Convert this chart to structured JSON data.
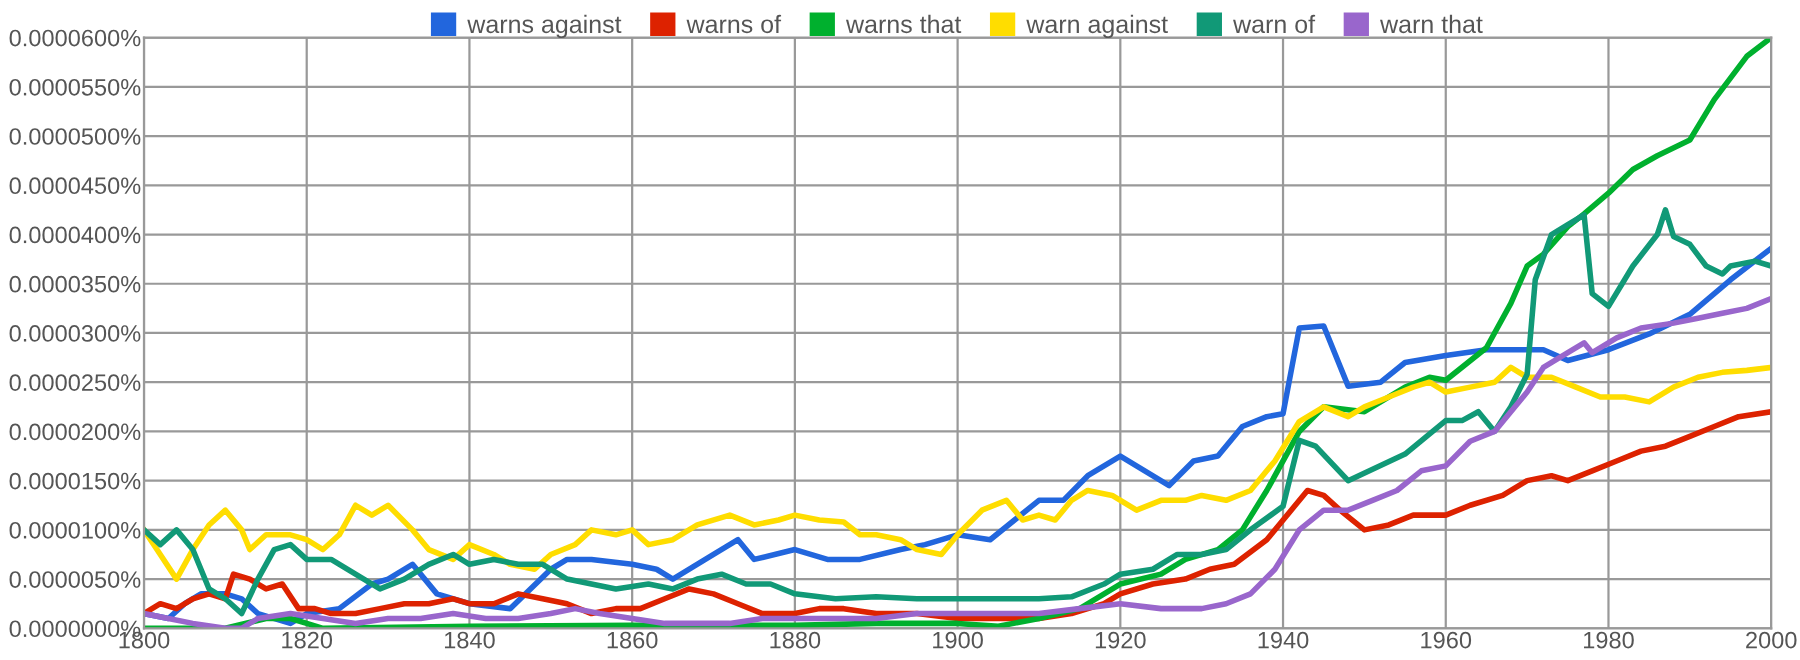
{
  "chart_data": {
    "type": "line",
    "grid": true,
    "legend": "top",
    "marker": "none",
    "line_style": "solid",
    "xlim": [
      1800,
      2000
    ],
    "xticks": [
      1800,
      1820,
      1840,
      1860,
      1880,
      1900,
      1920,
      1940,
      1960,
      1980,
      2000
    ],
    "ylim": [
      0,
      6e-05
    ],
    "yticks": [
      {
        "value": 0,
        "label": "0.0000000%"
      },
      {
        "value": 5e-06,
        "label": "0.0000050%"
      },
      {
        "value": 1e-05,
        "label": "0.0000100%"
      },
      {
        "value": 1.5e-05,
        "label": "0.0000150%"
      },
      {
        "value": 2e-05,
        "label": "0.0000200%"
      },
      {
        "value": 2.5e-05,
        "label": "0.0000250%"
      },
      {
        "value": 3e-05,
        "label": "0.0000300%"
      },
      {
        "value": 3.5e-05,
        "label": "0.0000350%"
      },
      {
        "value": 4e-05,
        "label": "0.0000400%"
      },
      {
        "value": 4.5e-05,
        "label": "0.0000450%"
      },
      {
        "value": 5e-05,
        "label": "0.0000500%"
      },
      {
        "value": 5.5e-05,
        "label": "0.0000550%"
      },
      {
        "value": 6e-05,
        "label": "0.0000600%"
      }
    ],
    "series": [
      {
        "name": "warns against",
        "color": "#2266dd",
        "x": [
          1800,
          1803,
          1805,
          1807,
          1810,
          1812,
          1814,
          1818,
          1820,
          1824,
          1828,
          1830,
          1833,
          1836,
          1840,
          1845,
          1850,
          1852,
          1855,
          1860,
          1863,
          1865,
          1870,
          1873,
          1875,
          1880,
          1884,
          1888,
          1893,
          1896,
          1900,
          1904,
          1907,
          1910,
          1913,
          1916,
          1920,
          1923,
          1926,
          1929,
          1932,
          1935,
          1938,
          1940,
          1942,
          1945,
          1948,
          1952,
          1955,
          1960,
          1965,
          1968,
          1972,
          1975,
          1980,
          1985,
          1990,
          1995,
          2000
        ],
        "values": [
          1.5e-06,
          1e-06,
          2.5e-06,
          3.5e-06,
          3.5e-06,
          3e-06,
          1.5e-06,
          5e-07,
          1.5e-06,
          2e-06,
          4.5e-06,
          5e-06,
          6.5e-06,
          3.5e-06,
          2.5e-06,
          2e-06,
          6e-06,
          7e-06,
          7e-06,
          6.5e-06,
          6e-06,
          5e-06,
          7.5e-06,
          9e-06,
          7e-06,
          8e-06,
          7e-06,
          7e-06,
          8e-06,
          8.5e-06,
          9.5e-06,
          9e-06,
          1.1e-05,
          1.3e-05,
          1.3e-05,
          1.55e-05,
          1.75e-05,
          1.6e-05,
          1.45e-05,
          1.7e-05,
          1.75e-05,
          2.05e-05,
          2.15e-05,
          2.18e-05,
          3.05e-05,
          3.07e-05,
          2.46e-05,
          2.5e-05,
          2.7e-05,
          2.77e-05,
          2.83e-05,
          2.83e-05,
          2.83e-05,
          2.72e-05,
          2.83e-05,
          2.99e-05,
          3.19e-05,
          3.54e-05,
          3.86e-05
        ]
      },
      {
        "name": "warns of",
        "color": "#dd2200",
        "x": [
          1800,
          1802,
          1804,
          1806,
          1808,
          1810,
          1811,
          1813,
          1815,
          1817,
          1819,
          1821,
          1823,
          1826,
          1829,
          1832,
          1835,
          1838,
          1840,
          1843,
          1846,
          1849,
          1852,
          1855,
          1858,
          1861,
          1864,
          1867,
          1870,
          1873,
          1876,
          1880,
          1883,
          1886,
          1890,
          1895,
          1900,
          1905,
          1910,
          1914,
          1918,
          1920,
          1924,
          1928,
          1931,
          1934,
          1938,
          1941,
          1943,
          1945,
          1947,
          1950,
          1953,
          1956,
          1960,
          1963,
          1967,
          1970,
          1973,
          1975,
          1978,
          1981,
          1984,
          1987,
          1990,
          1993,
          1996,
          2000
        ],
        "values": [
          1.5e-06,
          2.5e-06,
          2e-06,
          3e-06,
          3.5e-06,
          3e-06,
          5.5e-06,
          5e-06,
          4e-06,
          4.5e-06,
          2e-06,
          2e-06,
          1.5e-06,
          1.5e-06,
          2e-06,
          2.5e-06,
          2.5e-06,
          3e-06,
          2.5e-06,
          2.5e-06,
          3.5e-06,
          3e-06,
          2.5e-06,
          1.5e-06,
          2e-06,
          2e-06,
          3e-06,
          4e-06,
          3.5e-06,
          2.5e-06,
          1.5e-06,
          1.5e-06,
          2e-06,
          2e-06,
          1.5e-06,
          1.5e-06,
          1e-06,
          1e-06,
          1e-06,
          1.5e-06,
          2.5e-06,
          3.5e-06,
          4.5e-06,
          5e-06,
          6e-06,
          6.5e-06,
          9e-06,
          1.2e-05,
          1.4e-05,
          1.35e-05,
          1.2e-05,
          1e-05,
          1.05e-05,
          1.15e-05,
          1.15e-05,
          1.25e-05,
          1.35e-05,
          1.5e-05,
          1.55e-05,
          1.5e-05,
          1.6e-05,
          1.7e-05,
          1.8e-05,
          1.85e-05,
          1.95e-05,
          2.05e-05,
          2.15e-05,
          2.2e-05
        ]
      },
      {
        "name": "warns that",
        "color": "#00b02e",
        "x": [
          1800,
          1810,
          1815,
          1818,
          1820,
          1822,
          1840,
          1860,
          1880,
          1890,
          1900,
          1905,
          1910,
          1915,
          1920,
          1925,
          1928,
          1932,
          1935,
          1938,
          1942,
          1945,
          1950,
          1955,
          1958,
          1960,
          1965,
          1968,
          1970,
          1972,
          1975,
          1977,
          1980,
          1983,
          1986,
          1990,
          1993,
          1997,
          2000
        ],
        "values": [
          0,
          0,
          1e-06,
          1e-06,
          5e-07,
          0,
          2e-07,
          3e-07,
          3e-07,
          5e-07,
          5e-07,
          2e-07,
          1e-06,
          2e-06,
          4.5e-06,
          5.5e-06,
          7e-06,
          8e-06,
          1e-05,
          1.4e-05,
          2e-05,
          2.25e-05,
          2.2e-05,
          2.45e-05,
          2.55e-05,
          2.52e-05,
          2.85e-05,
          3.3e-05,
          3.68e-05,
          3.8e-05,
          4.08e-05,
          4.21e-05,
          4.42e-05,
          4.66e-05,
          4.8e-05,
          4.96e-05,
          5.37e-05,
          5.81e-05,
          6e-05
        ]
      },
      {
        "name": "warn against",
        "color": "#ffdd00",
        "x": [
          1800,
          1802,
          1804,
          1806,
          1808,
          1810,
          1812,
          1813,
          1815,
          1818,
          1820,
          1822,
          1824,
          1826,
          1828,
          1830,
          1833,
          1835,
          1838,
          1840,
          1843,
          1845,
          1848,
          1850,
          1853,
          1855,
          1858,
          1860,
          1862,
          1865,
          1868,
          1872,
          1875,
          1878,
          1880,
          1883,
          1886,
          1888,
          1890,
          1893,
          1895,
          1898,
          1900,
          1903,
          1906,
          1908,
          1910,
          1912,
          1914,
          1916,
          1919,
          1922,
          1925,
          1928,
          1930,
          1933,
          1936,
          1939,
          1942,
          1945,
          1948,
          1950,
          1953,
          1956,
          1958,
          1960,
          1963,
          1966,
          1968,
          1970,
          1973,
          1976,
          1979,
          1982,
          1985,
          1988,
          1991,
          1994,
          1997,
          2000
        ],
        "values": [
          1e-05,
          7.5e-06,
          5e-06,
          8e-06,
          1.05e-05,
          1.2e-05,
          1e-05,
          8e-06,
          9.5e-06,
          9.5e-06,
          9e-06,
          8e-06,
          9.5e-06,
          1.25e-05,
          1.15e-05,
          1.25e-05,
          1e-05,
          8e-06,
          7e-06,
          8.5e-06,
          7.5e-06,
          6.5e-06,
          6e-06,
          7.5e-06,
          8.5e-06,
          1e-05,
          9.5e-06,
          1e-05,
          8.5e-06,
          9e-06,
          1.05e-05,
          1.15e-05,
          1.05e-05,
          1.1e-05,
          1.15e-05,
          1.1e-05,
          1.08e-05,
          9.5e-06,
          9.5e-06,
          9e-06,
          8e-06,
          7.5e-06,
          9.5e-06,
          1.2e-05,
          1.3e-05,
          1.1e-05,
          1.15e-05,
          1.1e-05,
          1.3e-05,
          1.4e-05,
          1.35e-05,
          1.2e-05,
          1.3e-05,
          1.3e-05,
          1.35e-05,
          1.3e-05,
          1.4e-05,
          1.7e-05,
          2.1e-05,
          2.25e-05,
          2.15e-05,
          2.25e-05,
          2.35e-05,
          2.45e-05,
          2.5e-05,
          2.4e-05,
          2.45e-05,
          2.5e-05,
          2.65e-05,
          2.55e-05,
          2.55e-05,
          2.45e-05,
          2.35e-05,
          2.35e-05,
          2.3e-05,
          2.45e-05,
          2.55e-05,
          2.6e-05,
          2.62e-05,
          2.65e-05
        ]
      },
      {
        "name": "warn of",
        "color": "#119977",
        "x": [
          1800,
          1802,
          1804,
          1806,
          1808,
          1810,
          1812,
          1814,
          1816,
          1818,
          1820,
          1823,
          1826,
          1829,
          1832,
          1835,
          1838,
          1840,
          1843,
          1846,
          1849,
          1852,
          1855,
          1858,
          1862,
          1865,
          1868,
          1871,
          1874,
          1877,
          1880,
          1885,
          1890,
          1895,
          1900,
          1905,
          1910,
          1914,
          1918,
          1920,
          1924,
          1927,
          1930,
          1933,
          1936,
          1940,
          1942,
          1944,
          1948,
          1955,
          1960,
          1962,
          1964,
          1966,
          1968,
          1970,
          1971,
          1973,
          1975,
          1977,
          1978,
          1980,
          1983,
          1986,
          1987,
          1988,
          1990,
          1992,
          1994,
          1995,
          1998,
          2000
        ],
        "values": [
          1e-05,
          8.5e-06,
          1e-05,
          8e-06,
          4e-06,
          3e-06,
          1.5e-06,
          5e-06,
          8e-06,
          8.5e-06,
          7e-06,
          7e-06,
          5.5e-06,
          4e-06,
          5e-06,
          6.5e-06,
          7.5e-06,
          6.5e-06,
          7e-06,
          6.5e-06,
          6.5e-06,
          5e-06,
          4.5e-06,
          4e-06,
          4.5e-06,
          4e-06,
          5e-06,
          5.5e-06,
          4.5e-06,
          4.5e-06,
          3.5e-06,
          3e-06,
          3.2e-06,
          3e-06,
          3e-06,
          3e-06,
          3e-06,
          3.2e-06,
          4.5e-06,
          5.5e-06,
          6e-06,
          7.5e-06,
          7.5e-06,
          8e-06,
          1e-05,
          1.24e-05,
          1.91e-05,
          1.85e-05,
          1.5e-05,
          1.77e-05,
          2.11e-05,
          2.11e-05,
          2.2e-05,
          2e-05,
          2.25e-05,
          2.58e-05,
          3.54e-05,
          4e-05,
          4.1e-05,
          4.2e-05,
          3.4e-05,
          3.27e-05,
          3.68e-05,
          4e-05,
          4.25e-05,
          3.98e-05,
          3.9e-05,
          3.68e-05,
          3.6e-05,
          3.68e-05,
          3.73e-05,
          3.68e-05
        ]
      },
      {
        "name": "warn that",
        "color": "#9966cc",
        "x": [
          1800,
          1803,
          1806,
          1810,
          1812,
          1814,
          1818,
          1822,
          1826,
          1830,
          1834,
          1838,
          1842,
          1846,
          1850,
          1853,
          1856,
          1860,
          1864,
          1868,
          1872,
          1876,
          1880,
          1885,
          1890,
          1895,
          1900,
          1905,
          1910,
          1915,
          1920,
          1925,
          1930,
          1933,
          1936,
          1939,
          1942,
          1945,
          1948,
          1951,
          1954,
          1957,
          1960,
          1963,
          1966,
          1968,
          1970,
          1972,
          1975,
          1977,
          1978,
          1981,
          1984,
          1988,
          1991,
          1994,
          1997,
          2000
        ],
        "values": [
          1.5e-06,
          1e-06,
          5e-07,
          0,
          0,
          1e-06,
          1.5e-06,
          1e-06,
          5e-07,
          1e-06,
          1e-06,
          1.5e-06,
          1e-06,
          1e-06,
          1.5e-06,
          2e-06,
          1.5e-06,
          1e-06,
          5e-07,
          5e-07,
          5e-07,
          1e-06,
          1e-06,
          1e-06,
          1e-06,
          1.5e-06,
          1.5e-06,
          1.5e-06,
          1.5e-06,
          2e-06,
          2.5e-06,
          2e-06,
          2e-06,
          2.5e-06,
          3.5e-06,
          6e-06,
          1e-05,
          1.2e-05,
          1.2e-05,
          1.3e-05,
          1.4e-05,
          1.6e-05,
          1.65e-05,
          1.9e-05,
          2e-05,
          2.2e-05,
          2.4e-05,
          2.65e-05,
          2.8e-05,
          2.9e-05,
          2.8e-05,
          2.95e-05,
          3.05e-05,
          3.1e-05,
          3.15e-05,
          3.2e-05,
          3.25e-05,
          3.35e-05
        ]
      }
    ]
  }
}
